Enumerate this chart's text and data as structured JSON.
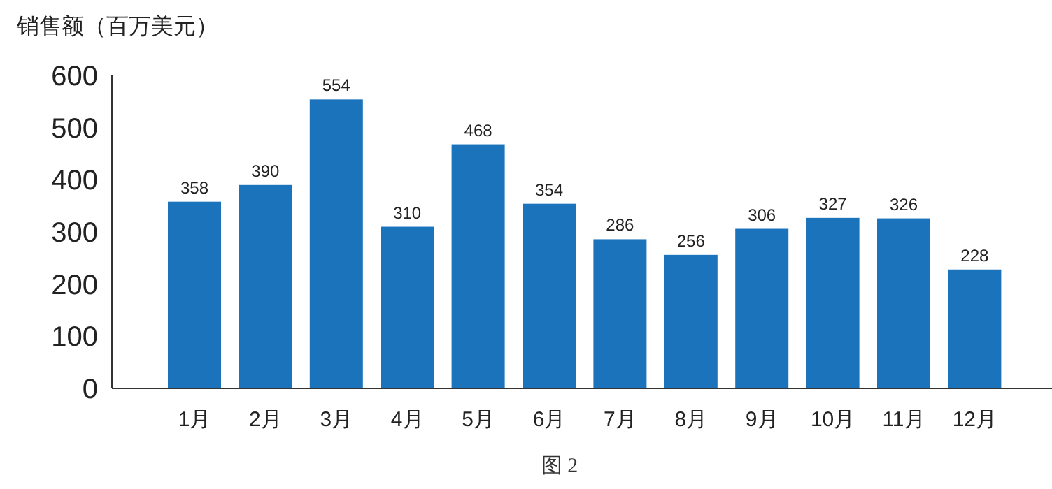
{
  "chart_data": {
    "type": "bar",
    "ylabel": "销售额（百万美元）",
    "annotations": [
      "图 2"
    ],
    "categories": [
      "1月",
      "2月",
      "3月",
      "4月",
      "5月",
      "6月",
      "7月",
      "8月",
      "9月",
      "10月",
      "11月",
      "12月"
    ],
    "values": [
      358,
      390,
      554,
      310,
      468,
      354,
      286,
      256,
      306,
      327,
      326,
      228
    ],
    "color": "#1a73bb",
    "ylim": [
      0,
      600
    ],
    "yticks": [
      0,
      100,
      200,
      300,
      400,
      500,
      600
    ],
    "data_labels": true
  }
}
